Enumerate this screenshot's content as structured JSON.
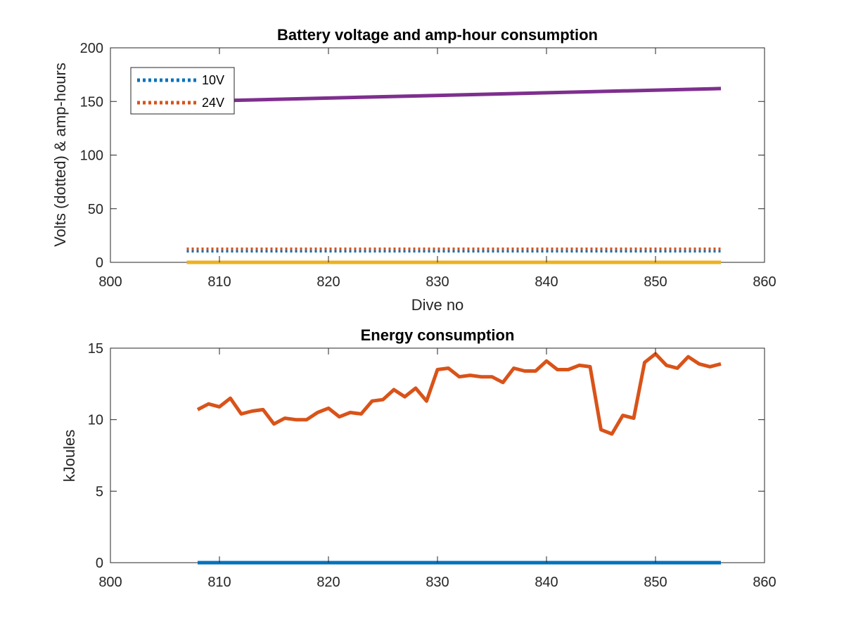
{
  "chart_data": [
    {
      "type": "line",
      "title": "Battery voltage and amp-hour consumption",
      "xlabel": "Dive no",
      "ylabel": "Volts (dotted) & amp-hours",
      "xlim": [
        800,
        860
      ],
      "ylim": [
        0,
        200
      ],
      "xticks": [
        800,
        810,
        820,
        830,
        840,
        850,
        860
      ],
      "yticks": [
        0,
        50,
        100,
        150,
        200
      ],
      "grid": false,
      "legend_position": "top-left",
      "series": [
        {
          "name": "10V",
          "style": "dotted",
          "color": "#0072BD",
          "x": [
            807,
            856
          ],
          "y": [
            10.5,
            10.5
          ]
        },
        {
          "name": "24V",
          "style": "dotted",
          "color": "#D95319",
          "x": [
            807,
            856
          ],
          "y": [
            12.5,
            12.5
          ]
        },
        {
          "style": "solid",
          "color": "#EDB120",
          "x": [
            807,
            856
          ],
          "y": [
            0,
            0
          ]
        },
        {
          "style": "solid",
          "color": "#7E2F8E",
          "x": [
            807,
            856
          ],
          "y": [
            150,
            162
          ]
        }
      ]
    },
    {
      "type": "line",
      "title": "Energy consumption",
      "xlabel": "",
      "ylabel": "kJoules",
      "xlim": [
        800,
        860
      ],
      "ylim": [
        0,
        15
      ],
      "xticks": [
        800,
        810,
        820,
        830,
        840,
        850,
        860
      ],
      "yticks": [
        0,
        5,
        10,
        15
      ],
      "grid": false,
      "series": [
        {
          "style": "solid",
          "color": "#0072BD",
          "x": [
            808,
            856
          ],
          "y": [
            0,
            0
          ]
        },
        {
          "style": "solid",
          "color": "#D95319",
          "x": [
            808,
            809,
            810,
            811,
            812,
            813,
            814,
            815,
            816,
            817,
            818,
            819,
            820,
            821,
            822,
            823,
            824,
            825,
            826,
            827,
            828,
            829,
            830,
            831,
            832,
            833,
            834,
            835,
            836,
            837,
            838,
            839,
            840,
            841,
            842,
            843,
            844,
            845,
            846,
            847,
            848,
            849,
            850,
            851,
            852,
            853,
            854,
            855,
            856
          ],
          "y": [
            10.7,
            11.1,
            10.9,
            11.5,
            10.4,
            10.6,
            10.7,
            9.7,
            10.1,
            10.0,
            10.0,
            10.5,
            10.8,
            10.2,
            10.5,
            10.4,
            11.3,
            11.4,
            12.1,
            11.6,
            12.2,
            11.3,
            13.5,
            13.6,
            13.0,
            13.1,
            13.0,
            13.0,
            12.6,
            13.6,
            13.4,
            13.4,
            14.1,
            13.5,
            13.5,
            13.8,
            13.7,
            9.3,
            9.0,
            10.3,
            10.1,
            14.0,
            14.6,
            13.8,
            13.6,
            14.4,
            13.9,
            13.7,
            13.9
          ]
        }
      ]
    }
  ]
}
